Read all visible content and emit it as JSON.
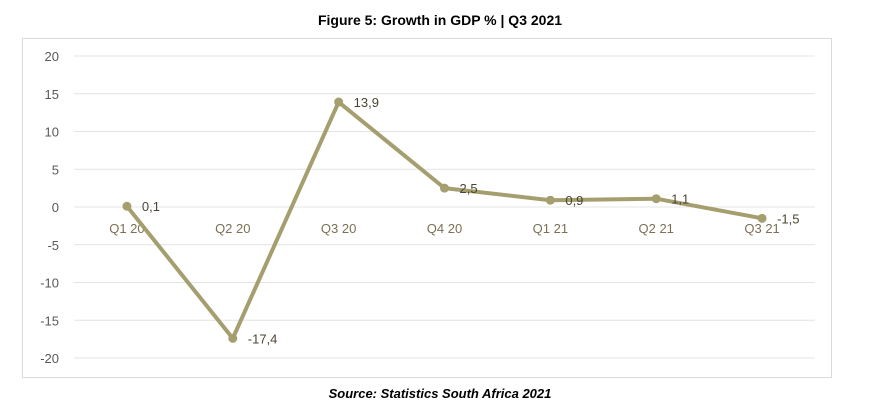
{
  "chart_data": {
    "type": "line",
    "title": "Figure 5: Growth in GDP % | Q3 2021",
    "source": "Source:  Statistics South Africa 2021",
    "categories": [
      "Q1 20",
      "Q2 20",
      "Q3 20",
      "Q4 20",
      "Q1 21",
      "Q2 21",
      "Q3 21"
    ],
    "values": [
      0.1,
      -17.4,
      13.9,
      2.5,
      0.9,
      1.1,
      -1.5
    ],
    "data_labels": [
      "0,1",
      "-17,4",
      "13,9",
      "2,5",
      "0,9",
      "1,1",
      "-1,5"
    ],
    "yticks": [
      "20",
      "15",
      "10",
      "5",
      "0",
      "-5",
      "-10",
      "-15",
      "-20"
    ],
    "ylim": [
      -20,
      20
    ],
    "grid": true,
    "legend": "none",
    "line_color": "#a59e6f",
    "grid_color": "#e4e4e4"
  }
}
